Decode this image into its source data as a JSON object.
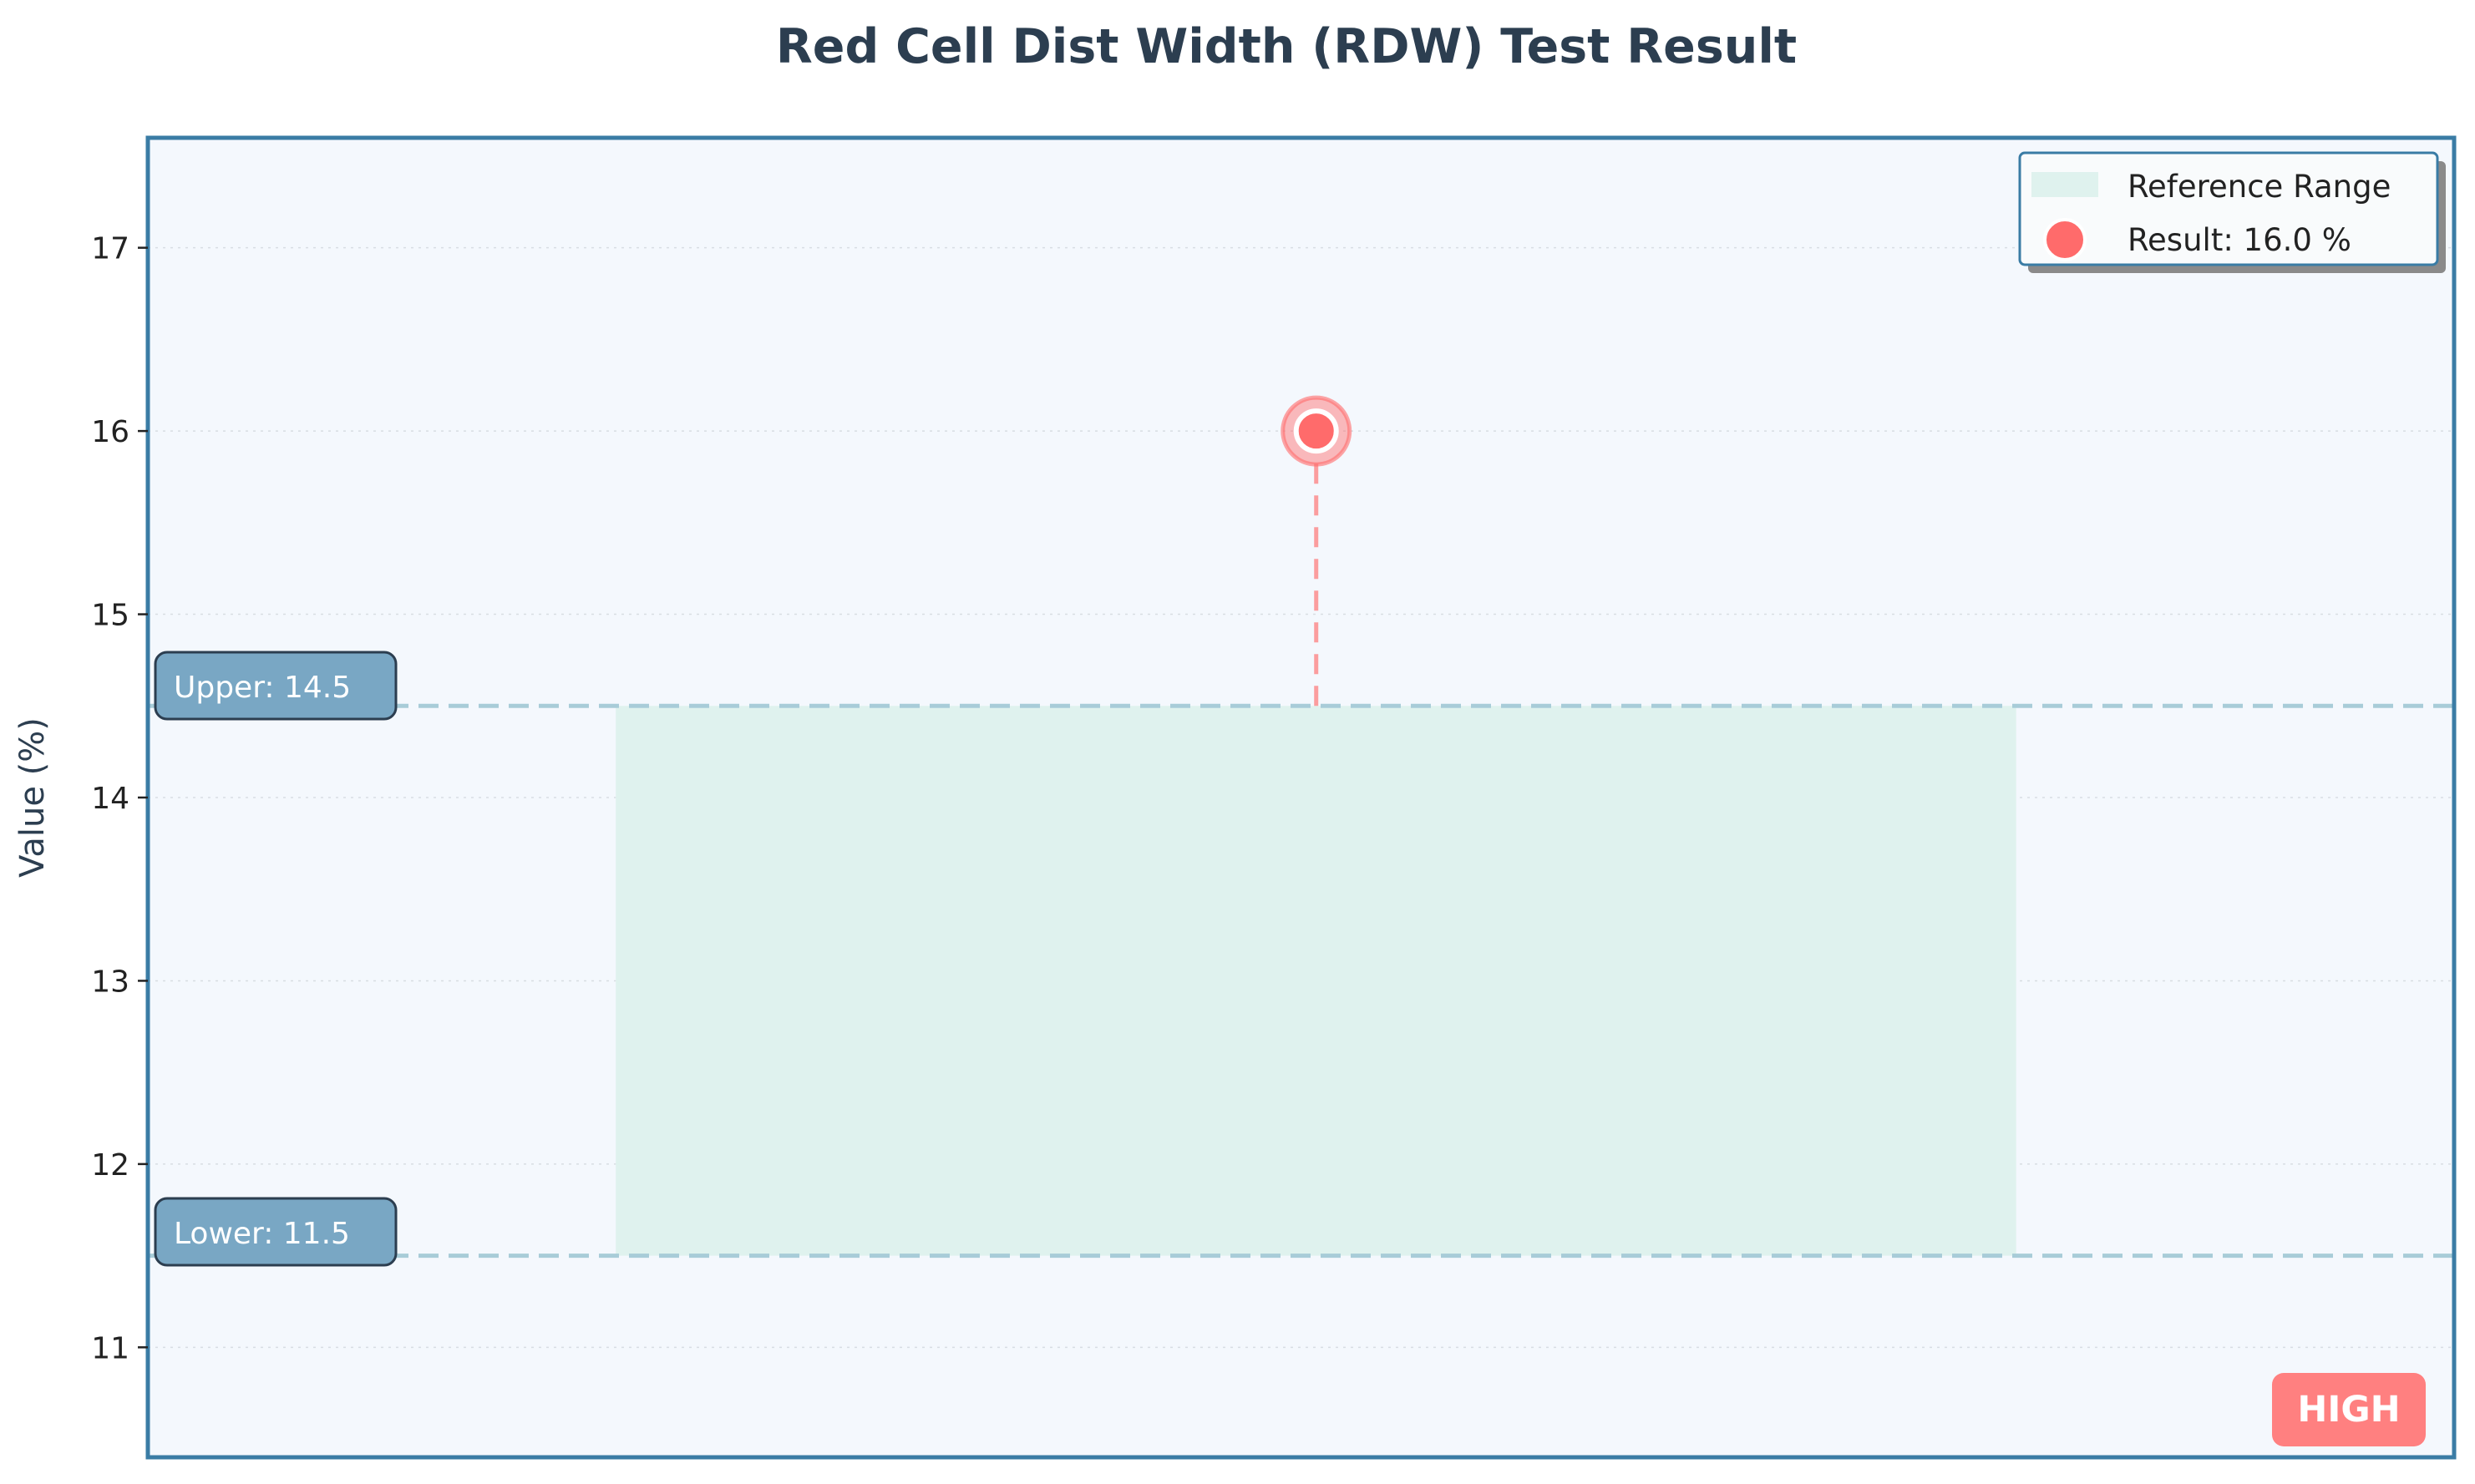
{
  "chart_data": {
    "type": "scatter",
    "title": "Red Cell Dist Width (RDW) Test Result",
    "ylabel": "Value (%)",
    "xlabel": "",
    "ylim": [
      10.4,
      17.6
    ],
    "yticks": [
      11,
      12,
      13,
      14,
      15,
      16,
      17
    ],
    "grid": "horizontal dotted",
    "legend_placement": "top-right",
    "reference_range": {
      "lower": 11.5,
      "upper": 14.5
    },
    "result": {
      "value": 16.0,
      "unit": "%"
    },
    "labels": {
      "upper": "Upper: 14.5",
      "lower": "Lower: 11.5",
      "status": "HIGH"
    },
    "legend": [
      {
        "label": "Reference Range",
        "kind": "patch"
      },
      {
        "label": "Result: 16.0 %",
        "kind": "marker"
      }
    ],
    "colors": {
      "title": "#2c3e50",
      "frame": "#3a7ca5",
      "plot_bg": "#f4f8fd",
      "range_fill": "#dff2ee",
      "limit_line": "#a8ccd8",
      "limit_box": "#79a7c4",
      "result": "#ff6b6b",
      "status_bg": "#ff8080"
    }
  }
}
